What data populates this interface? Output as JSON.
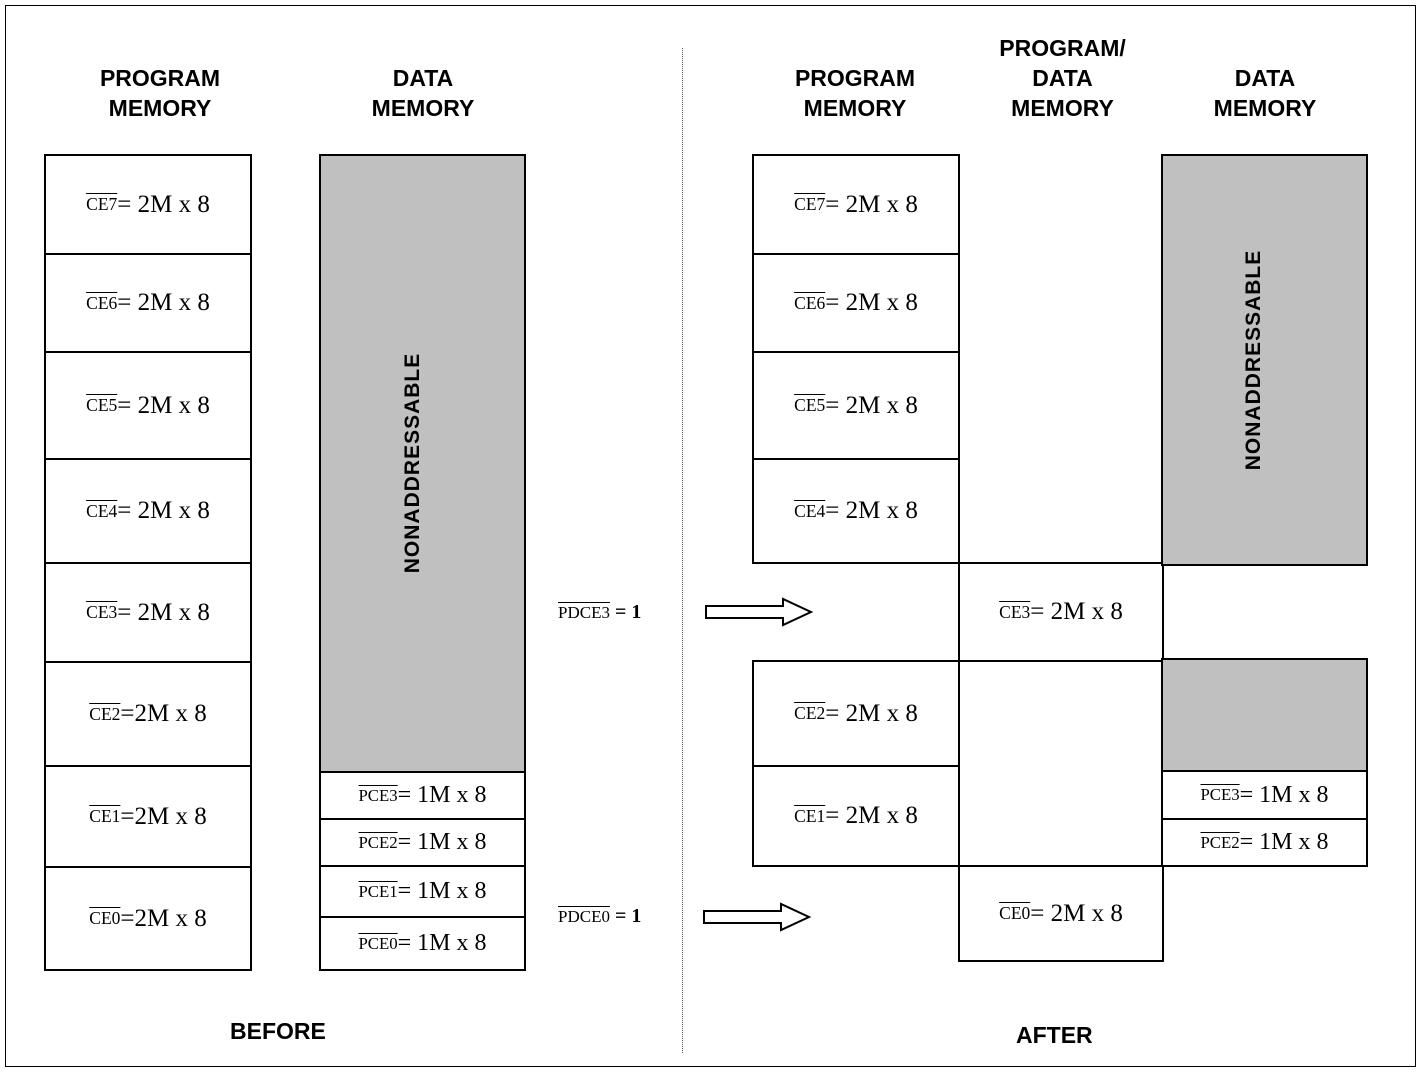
{
  "headers": {
    "before_program": "PROGRAM\nMEMORY",
    "before_data": "DATA\nMEMORY",
    "after_program": "PROGRAM\nMEMORY",
    "after_program_data": "PROGRAM/\nDATA\nMEMORY",
    "after_data": "DATA\nMEMORY"
  },
  "before_program_blocks": [
    {
      "sig": "CE7",
      "text": " = 2M x 8"
    },
    {
      "sig": "CE6",
      "text": " = 2M x 8"
    },
    {
      "sig": "CE5",
      "text": " = 2M x 8"
    },
    {
      "sig": "CE4",
      "text": " = 2M x 8"
    },
    {
      "sig": "CE3",
      "text": " = 2M x 8"
    },
    {
      "sig": "CE2",
      "text": " =2M x 8"
    },
    {
      "sig": "CE1",
      "text": " =2M x 8"
    },
    {
      "sig": "CE0",
      "text": " =2M x 8"
    }
  ],
  "before_data_blocks": [
    {
      "sig": "PCE3",
      "text": " = 1M x 8"
    },
    {
      "sig": "PCE2",
      "text": " = 1M x 8"
    },
    {
      "sig": "PCE1",
      "text": " = 1M x 8"
    },
    {
      "sig": "PCE0",
      "text": " = 1M x 8"
    }
  ],
  "nonaddressable_label": "NONADDRESSABLE",
  "after_program_blocks": [
    {
      "sig": "CE7",
      "text": " = 2M x 8"
    },
    {
      "sig": "CE6",
      "text": " = 2M x 8"
    },
    {
      "sig": "CE5",
      "text": " = 2M x 8"
    },
    {
      "sig": "CE4",
      "text": " = 2M x 8"
    },
    {
      "sig": "CE2",
      "text": " = 2M x 8"
    },
    {
      "sig": "CE1",
      "text": " = 2M x 8"
    }
  ],
  "after_program_data_blocks": [
    {
      "sig": "CE3",
      "text": " = 2M x 8"
    },
    {
      "sig": "CE0",
      "text": " = 2M x 8"
    }
  ],
  "after_data_blocks": [
    {
      "sig": "PCE3",
      "text": " = 1M x 8"
    },
    {
      "sig": "PCE2",
      "text": " = 1M x 8"
    }
  ],
  "signals": [
    {
      "sig": "PDCE3",
      "text": " = 1"
    },
    {
      "sig": "PDCE0",
      "text": " = 1"
    }
  ],
  "footer": {
    "before": "BEFORE",
    "after": "AFTER"
  }
}
